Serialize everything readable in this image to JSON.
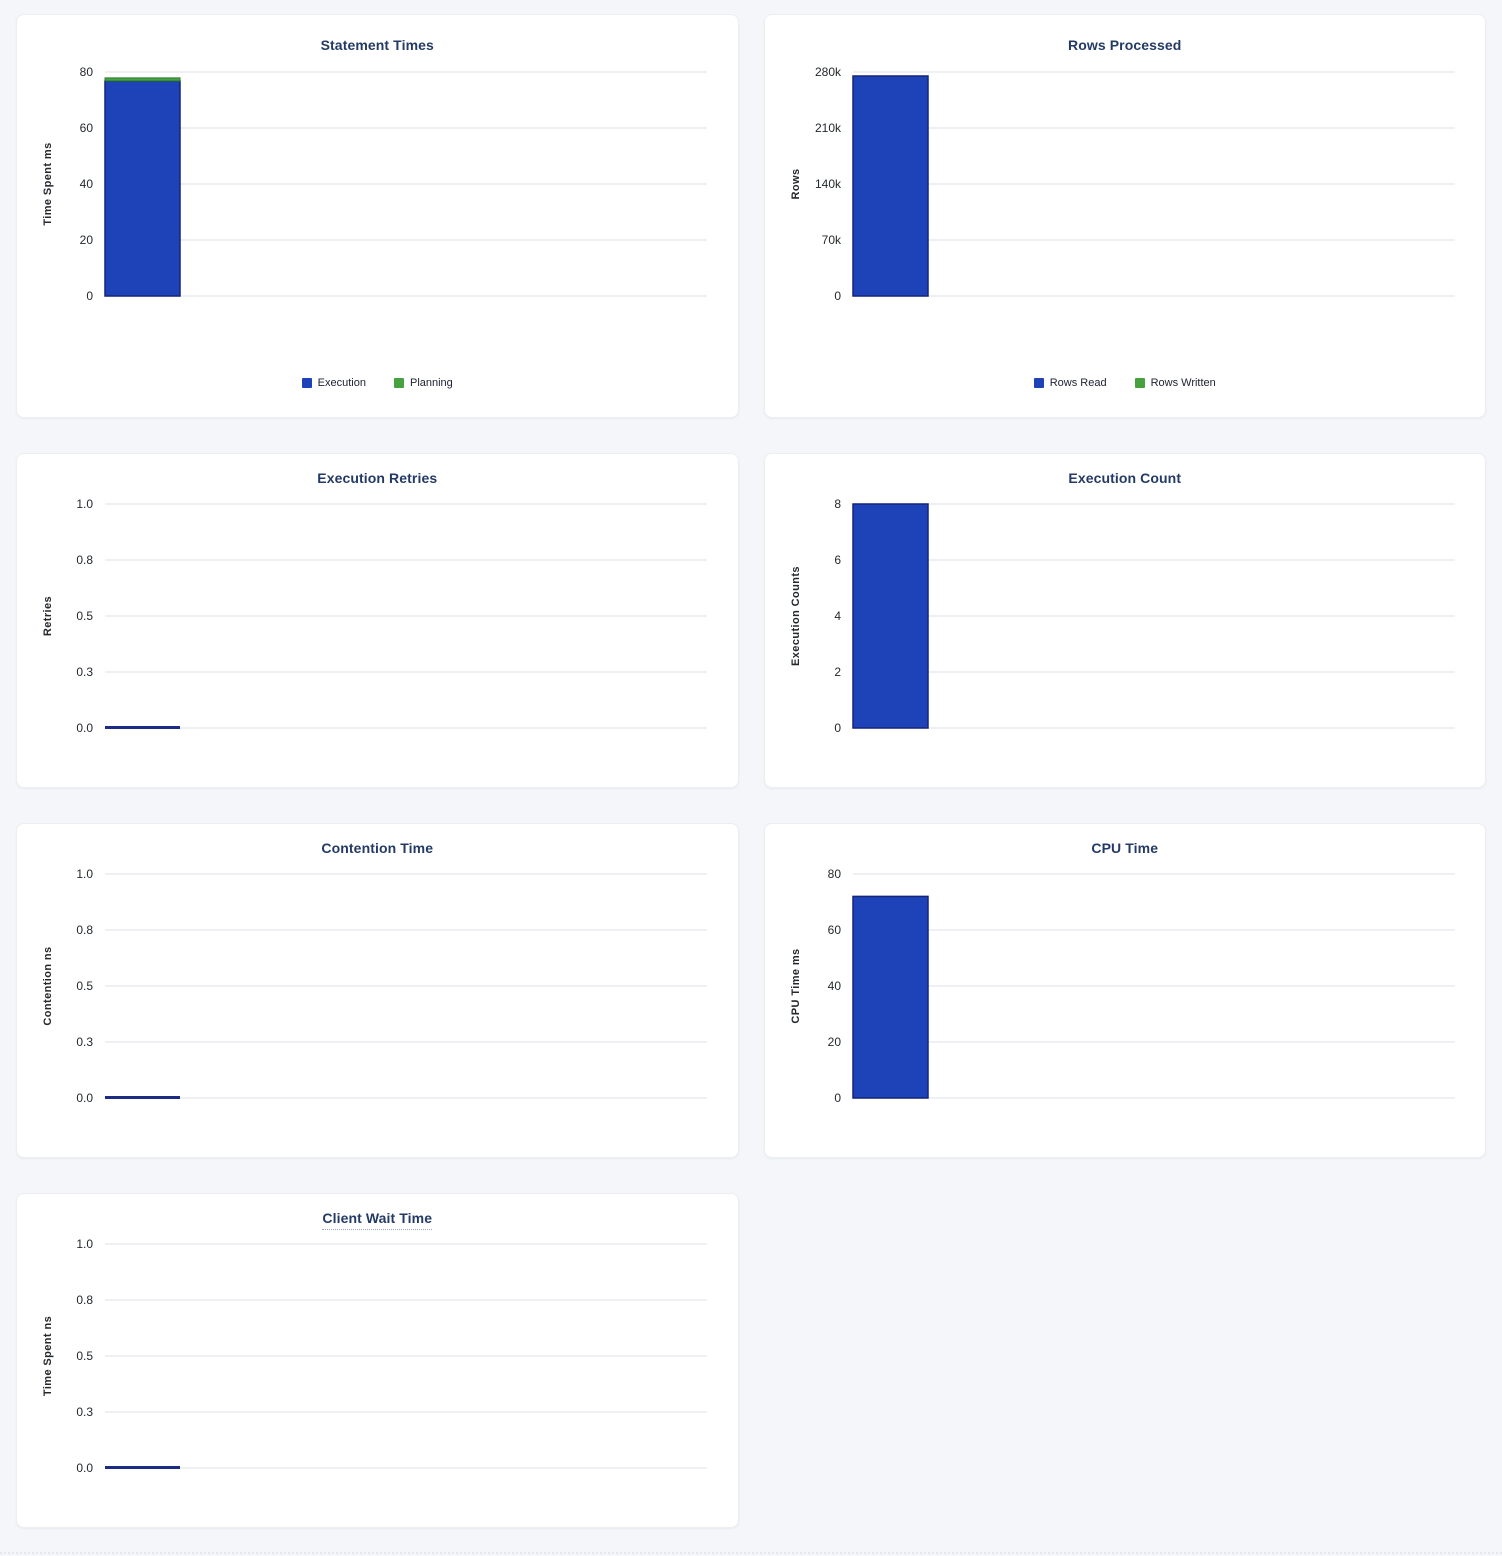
{
  "page": {
    "background_color": "#f4f6fa",
    "card_color": "#ffffff"
  },
  "colors": {
    "title_text": "#243a66",
    "axis_text": "#24292e",
    "gridline": "#e9ebf0",
    "bar_blue": "#1e43b8",
    "bar_blue_border": "#152578",
    "bar_green": "#46a23f",
    "bar_green_border": "#2f7a2f",
    "zero_bar": "#1c2c85",
    "legend_text": "#202433"
  },
  "chart_data": [
    {
      "type": "bar",
      "title": "Statement Times",
      "title_tooltip": false,
      "ylabel": "Time Spent ms",
      "ylim": [
        0,
        80
      ],
      "yticks": [
        {
          "label": "80",
          "value": 80
        },
        {
          "label": "60",
          "value": 60
        },
        {
          "label": "40",
          "value": 40
        },
        {
          "label": "20",
          "value": 20
        },
        {
          "label": "0",
          "value": 0
        }
      ],
      "stacked": true,
      "grid": true,
      "size": "tall",
      "legend_position": "bottom",
      "series": [
        {
          "name": "Execution",
          "color": "blue",
          "value": 76.8
        },
        {
          "name": "Planning",
          "color": "green",
          "value": 1.1
        }
      ],
      "legend": [
        {
          "label": "Execution",
          "color": "blue"
        },
        {
          "label": "Planning",
          "color": "green"
        }
      ]
    },
    {
      "type": "bar",
      "title": "Rows Processed",
      "title_tooltip": false,
      "ylabel": "Rows",
      "ylim": [
        0,
        280000
      ],
      "yticks": [
        {
          "label": "280k",
          "value": 280000
        },
        {
          "label": "210k",
          "value": 210000
        },
        {
          "label": "140k",
          "value": 140000
        },
        {
          "label": "70k",
          "value": 70000
        },
        {
          "label": "0",
          "value": 0
        }
      ],
      "stacked": true,
      "grid": true,
      "size": "tall",
      "legend_position": "bottom",
      "series": [
        {
          "name": "Rows Read",
          "color": "blue",
          "value": 275000
        },
        {
          "name": "Rows Written",
          "color": "green",
          "value": 0
        }
      ],
      "legend": [
        {
          "label": "Rows Read",
          "color": "blue"
        },
        {
          "label": "Rows Written",
          "color": "green"
        }
      ]
    },
    {
      "type": "bar",
      "title": "Execution Retries",
      "title_tooltip": false,
      "ylabel": "Retries",
      "ylim": [
        0,
        1
      ],
      "yticks": [
        {
          "label": "1.0",
          "value": 1.0
        },
        {
          "label": "0.8",
          "value": 0.75
        },
        {
          "label": "0.5",
          "value": 0.5
        },
        {
          "label": "0.3",
          "value": 0.25
        },
        {
          "label": "0.0",
          "value": 0
        }
      ],
      "stacked": false,
      "grid": true,
      "size": "short",
      "legend_position": "none",
      "series": [
        {
          "name": "Retries",
          "color": "blue",
          "value": 0
        }
      ],
      "legend": []
    },
    {
      "type": "bar",
      "title": "Execution Count",
      "title_tooltip": false,
      "ylabel": "Execution Counts",
      "ylim": [
        0,
        8
      ],
      "yticks": [
        {
          "label": "8",
          "value": 8
        },
        {
          "label": "6",
          "value": 6
        },
        {
          "label": "4",
          "value": 4
        },
        {
          "label": "2",
          "value": 2
        },
        {
          "label": "0",
          "value": 0
        }
      ],
      "stacked": false,
      "grid": true,
      "size": "short",
      "legend_position": "none",
      "series": [
        {
          "name": "Execution Count",
          "color": "blue",
          "value": 8
        }
      ],
      "legend": []
    },
    {
      "type": "bar",
      "title": "Contention Time",
      "title_tooltip": false,
      "ylabel": "Contention ns",
      "ylim": [
        0,
        1
      ],
      "yticks": [
        {
          "label": "1.0",
          "value": 1.0
        },
        {
          "label": "0.8",
          "value": 0.75
        },
        {
          "label": "0.5",
          "value": 0.5
        },
        {
          "label": "0.3",
          "value": 0.25
        },
        {
          "label": "0.0",
          "value": 0
        }
      ],
      "stacked": false,
      "grid": true,
      "size": "short",
      "legend_position": "none",
      "series": [
        {
          "name": "Contention",
          "color": "blue",
          "value": 0
        }
      ],
      "legend": []
    },
    {
      "type": "bar",
      "title": "CPU Time",
      "title_tooltip": false,
      "ylabel": "CPU Time ms",
      "ylim": [
        0,
        80
      ],
      "yticks": [
        {
          "label": "80",
          "value": 80
        },
        {
          "label": "60",
          "value": 60
        },
        {
          "label": "40",
          "value": 40
        },
        {
          "label": "20",
          "value": 20
        },
        {
          "label": "0",
          "value": 0
        }
      ],
      "stacked": false,
      "grid": true,
      "size": "short",
      "legend_position": "none",
      "series": [
        {
          "name": "CPU Time",
          "color": "blue",
          "value": 72
        }
      ],
      "legend": []
    },
    {
      "type": "bar",
      "title": "Client Wait Time",
      "title_tooltip": true,
      "ylabel": "Time Spent ns",
      "ylim": [
        0,
        1
      ],
      "yticks": [
        {
          "label": "1.0",
          "value": 1.0
        },
        {
          "label": "0.8",
          "value": 0.75
        },
        {
          "label": "0.5",
          "value": 0.5
        },
        {
          "label": "0.3",
          "value": 0.25
        },
        {
          "label": "0.0",
          "value": 0
        }
      ],
      "stacked": false,
      "grid": true,
      "size": "short",
      "legend_position": "none",
      "series": [
        {
          "name": "Client Wait",
          "color": "blue",
          "value": 0
        }
      ],
      "legend": []
    }
  ]
}
